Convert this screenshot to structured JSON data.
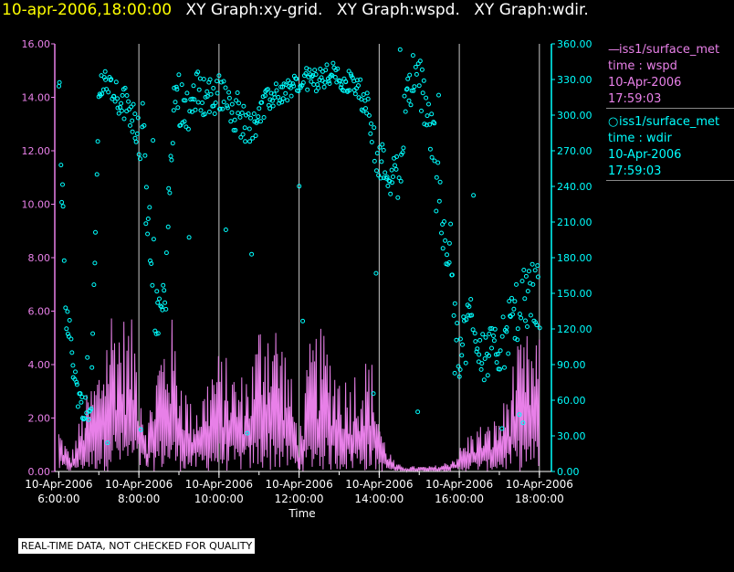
{
  "header": {
    "time": "10-apr-2006,18:00:00",
    "graphs": [
      "XY Graph:xy-grid.",
      "XY Graph:wspd.",
      "XY Graph:wdir."
    ]
  },
  "legend": {
    "wspd": {
      "name": "iss1/surface_met",
      "var": "time : wspd",
      "date": "10-Apr-2006",
      "time": "17:59:03",
      "color": "#e880e8",
      "style": "line"
    },
    "wdir": {
      "name": "iss1/surface_met",
      "var": "time : wdir",
      "date": "10-Apr-2006",
      "time": "17:59:03",
      "color": "#00ffff",
      "style": "circles"
    }
  },
  "disclaimer": "REAL-TIME DATA, NOT CHECKED FOR QUALITY",
  "chart_data": {
    "type": "line",
    "xlabel": "Time",
    "x_range_hours": [
      5.9,
      18.3
    ],
    "x_ticks": [
      {
        "hour": 6,
        "date": "10-Apr-2006",
        "time": "6:00:00"
      },
      {
        "hour": 8,
        "date": "10-Apr-2006",
        "time": "8:00:00"
      },
      {
        "hour": 10,
        "date": "10-Apr-2006",
        "time": "10:00:00"
      },
      {
        "hour": 12,
        "date": "10-Apr-2006",
        "time": "12:00:00"
      },
      {
        "hour": 14,
        "date": "10-Apr-2006",
        "time": "14:00:00"
      },
      {
        "hour": 16,
        "date": "10-Apr-2006",
        "time": "16:00:00"
      },
      {
        "hour": 18,
        "date": "10-Apr-2006",
        "time": "18:00:00"
      }
    ],
    "grid_hours": [
      8,
      10,
      12,
      14,
      16,
      18
    ],
    "left_axis": {
      "color": "#e880e8",
      "range": [
        0,
        16
      ],
      "ticks": [
        "0.00",
        "2.00",
        "4.00",
        "6.00",
        "8.00",
        "10.00",
        "12.00",
        "14.00",
        "16.00"
      ]
    },
    "right_axis": {
      "color": "#00ffff",
      "range": [
        0,
        360
      ],
      "ticks": [
        "0.00",
        "30.00",
        "60.00",
        "90.00",
        "120.00",
        "150.00",
        "180.00",
        "210.00",
        "240.00",
        "270.00",
        "300.00",
        "330.00",
        "360.00"
      ]
    },
    "series": [
      {
        "name": "wspd",
        "axis": "left",
        "style": "line",
        "envelope_hours": [
          6.0,
          6.3,
          6.6,
          7.0,
          7.3,
          7.6,
          7.9,
          8.2,
          8.5,
          8.8,
          9.0,
          9.3,
          9.6,
          9.9,
          10.2,
          10.5,
          10.8,
          11.1,
          11.4,
          11.7,
          12.0,
          12.3,
          12.6,
          12.9,
          13.2,
          13.5,
          13.8,
          14.1,
          14.4,
          14.7,
          15.0,
          15.3,
          15.6,
          15.9,
          16.2,
          16.5,
          16.8,
          17.1,
          17.4,
          17.7,
          18.0
        ],
        "envelope_peak": [
          1.8,
          0.6,
          2.5,
          4.2,
          6.6,
          6.0,
          5.6,
          1.8,
          4.8,
          6.0,
          4.4,
          2.6,
          3.2,
          4.6,
          4.3,
          3.6,
          4.2,
          6.6,
          6.0,
          4.7,
          1.4,
          5.2,
          5.4,
          4.4,
          3.6,
          4.2,
          4.4,
          1.4,
          0.3,
          0.2,
          0.2,
          0.2,
          0.3,
          0.6,
          1.4,
          1.8,
          1.8,
          2.6,
          4.6,
          5.2,
          5.0
        ]
      },
      {
        "name": "wdir",
        "axis": "right",
        "style": "circles",
        "envelope_hours": [
          6.0,
          6.2,
          6.5,
          6.8,
          7.0,
          7.2,
          7.5,
          7.8,
          8.1,
          8.3,
          8.6,
          8.9,
          9.2,
          9.5,
          9.8,
          10.1,
          10.4,
          10.7,
          11.0,
          11.3,
          11.6,
          11.9,
          12.2,
          12.5,
          12.8,
          13.1,
          13.4,
          13.7,
          14.0,
          14.2,
          14.5,
          14.7,
          14.9,
          15.2,
          15.5,
          15.8,
          16.0,
          16.3,
          16.6,
          16.9,
          17.2,
          17.5,
          17.8,
          18.0
        ],
        "envelope_center": [
          330,
          128,
          60,
          48,
          325,
          330,
          315,
          305,
          280,
          170,
          120,
          320,
          305,
          320,
          315,
          320,
          305,
          290,
          300,
          315,
          320,
          325,
          330,
          330,
          335,
          330,
          325,
          310,
          260,
          255,
          245,
          330,
          330,
          310,
          230,
          180,
          100,
          130,
          100,
          100,
          115,
          135,
          150,
          150
        ],
        "envelope_spread": [
          40,
          20,
          10,
          15,
          10,
          10,
          15,
          15,
          30,
          40,
          40,
          25,
          20,
          20,
          20,
          15,
          20,
          15,
          15,
          10,
          10,
          10,
          10,
          10,
          10,
          10,
          10,
          15,
          20,
          20,
          20,
          20,
          25,
          30,
          40,
          25,
          25,
          25,
          25,
          20,
          25,
          30,
          30,
          30
        ]
      }
    ]
  }
}
